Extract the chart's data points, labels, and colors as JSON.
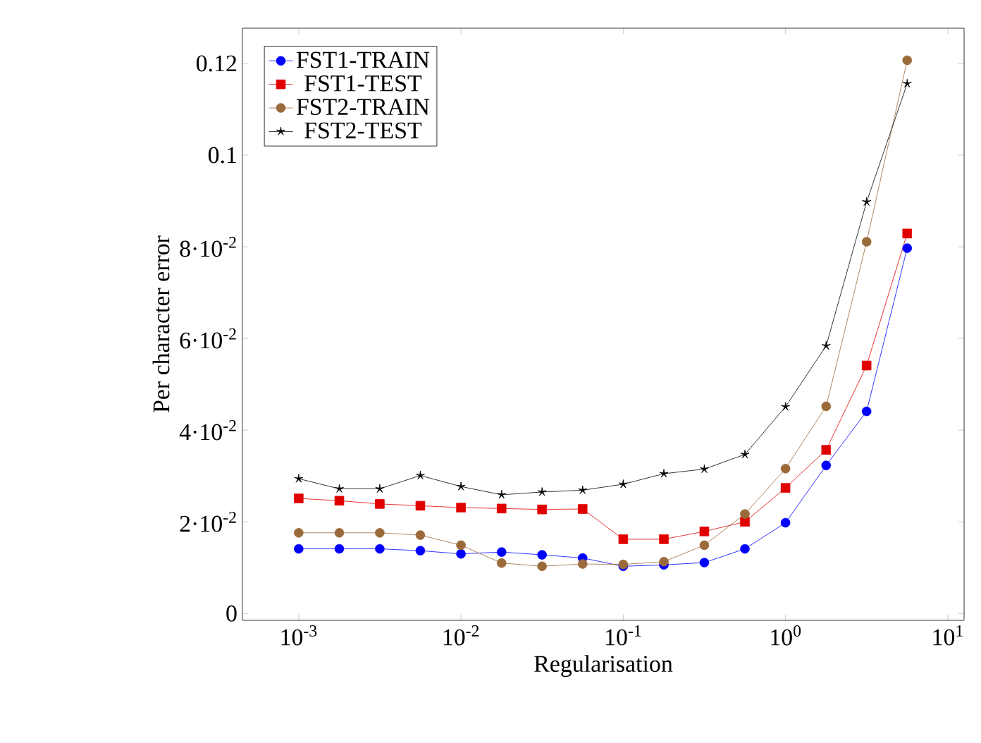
{
  "chart_data": {
    "type": "line",
    "xlabel": "Regularisation",
    "ylabel": "Per character error",
    "x": [
      0.001,
      0.00178,
      0.00316,
      0.00562,
      0.01,
      0.0178,
      0.0316,
      0.0562,
      0.1,
      0.178,
      0.316,
      0.562,
      1,
      1.78,
      3.16,
      5.62
    ],
    "series": [
      {
        "name": "FST1-TRAIN",
        "color": "#0000ff",
        "marker": "circle",
        "values": [
          0.0141,
          0.0141,
          0.0141,
          0.0137,
          0.013,
          0.0134,
          0.0128,
          0.0121,
          0.0103,
          0.0106,
          0.0111,
          0.0141,
          0.0198,
          0.0323,
          0.0441,
          0.0797
        ]
      },
      {
        "name": "FST1-TEST",
        "color": "#e00000",
        "marker": "square",
        "values": [
          0.0251,
          0.0246,
          0.0239,
          0.0235,
          0.0231,
          0.0229,
          0.0227,
          0.0228,
          0.0162,
          0.0162,
          0.0179,
          0.02,
          0.0274,
          0.0357,
          0.0541,
          0.0829
        ]
      },
      {
        "name": "FST2-TRAIN",
        "color": "#9a6a3a",
        "marker": "circle",
        "values": [
          0.0176,
          0.0176,
          0.0176,
          0.0171,
          0.0149,
          0.011,
          0.0103,
          0.0108,
          0.0107,
          0.0113,
          0.0149,
          0.0217,
          0.0316,
          0.0452,
          0.0811,
          0.1207
        ]
      },
      {
        "name": "FST2-TEST",
        "color": "#000000",
        "marker": "star",
        "values": [
          0.0294,
          0.0272,
          0.0272,
          0.0301,
          0.0277,
          0.0259,
          0.0265,
          0.0269,
          0.0282,
          0.0305,
          0.0315,
          0.0347,
          0.0451,
          0.0584,
          0.0898,
          0.1156
        ]
      }
    ],
    "log": "x",
    "legend": "top left",
    "line_style": "solid",
    "xlim": [
      0.00045,
      12.6
    ],
    "ylim": [
      -0.0015,
      0.1277
    ],
    "xticks": [
      {
        "value": 0.001,
        "label": "10$^{-3}$"
      },
      {
        "value": 0.01,
        "label": "10$^{-2}$"
      },
      {
        "value": 0.1,
        "label": "10$^{-1}$"
      },
      {
        "value": 1,
        "label": "10$^{0}$"
      },
      {
        "value": 10,
        "label": "10$^{1}$"
      }
    ],
    "yticks": [
      0,
      {
        "value": 0.02,
        "label": "2·10$^{-2}$"
      },
      {
        "value": 0.04,
        "label": "4·10$^{-2}$"
      },
      {
        "value": 0.06,
        "label": "6·10$^{-2}$"
      },
      {
        "value": 0.08,
        "label": "8·10$^{-2}$"
      },
      0.1,
      0.12
    ]
  }
}
